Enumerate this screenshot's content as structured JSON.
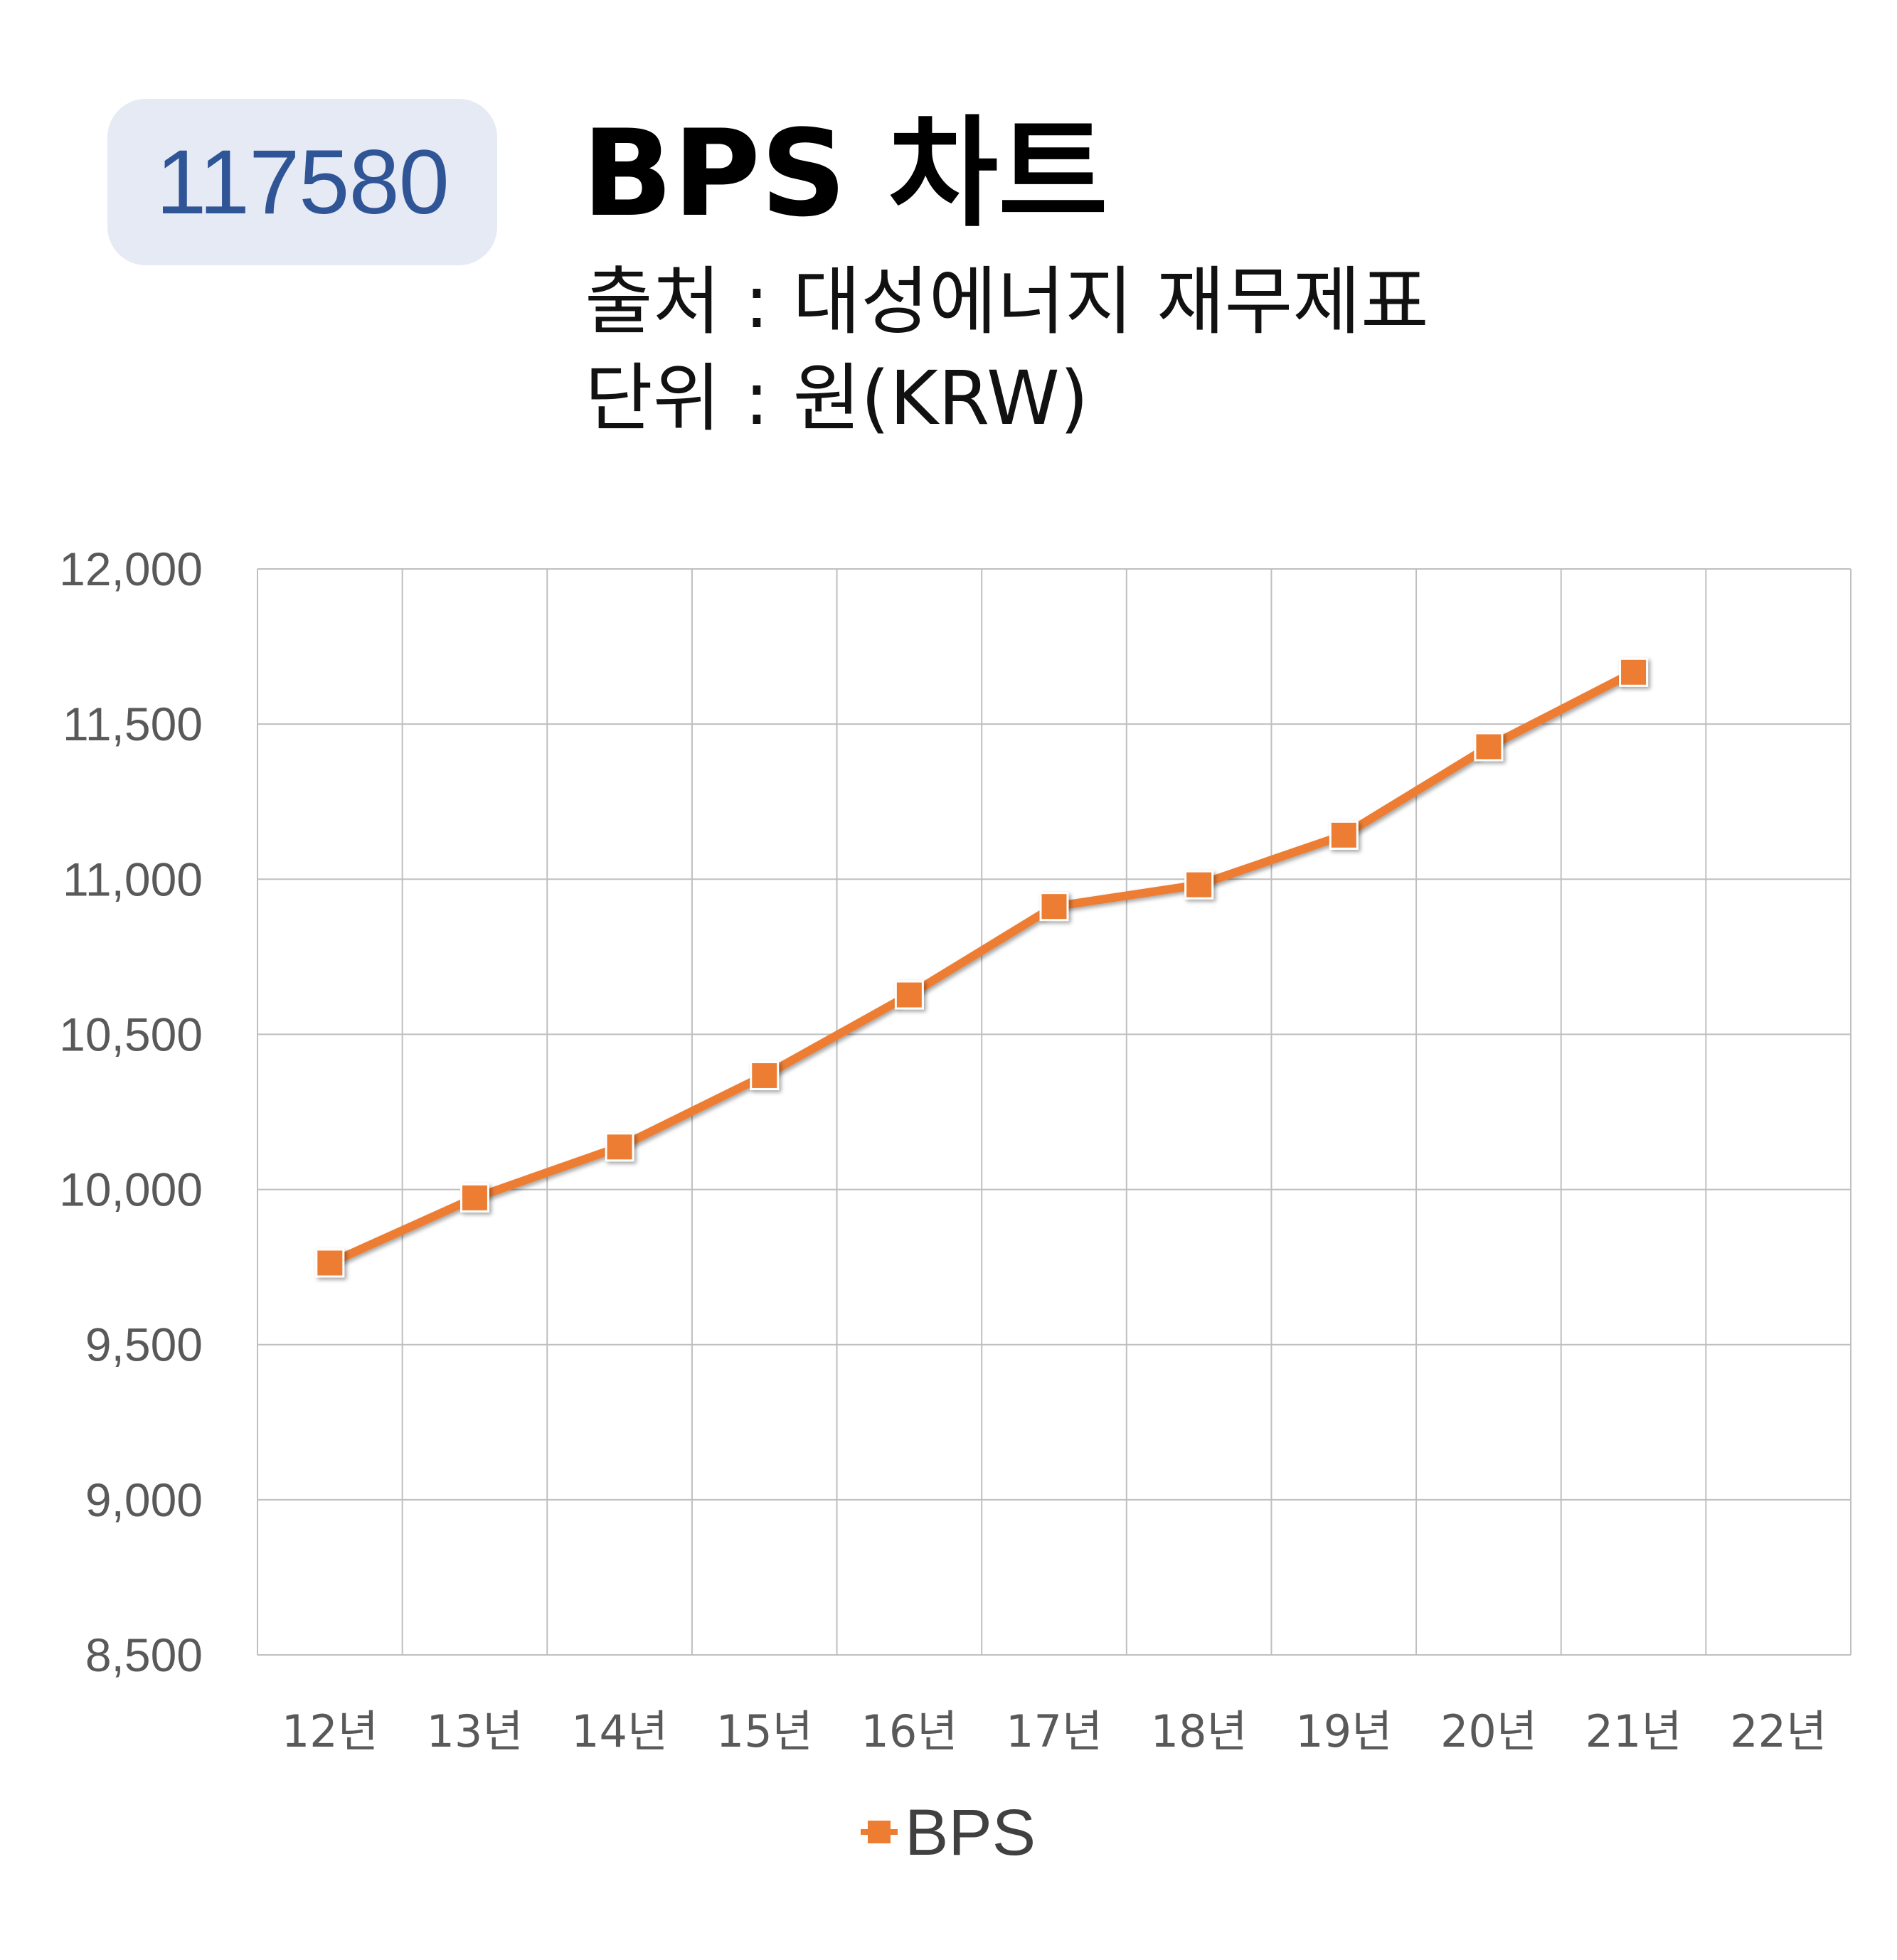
{
  "code_badge": "117580",
  "chart_data": {
    "type": "line",
    "title": "BPS 차트",
    "subtitle_source": "출처 : 대성에너지 재무제표",
    "subtitle_unit": "단위 : 원(KRW)",
    "categories": [
      "12년",
      "13년",
      "14년",
      "15년",
      "16년",
      "17년",
      "18년",
      "19년",
      "20년",
      "21년",
      "22년"
    ],
    "series": [
      {
        "name": "BPS",
        "color": "#ed7d31",
        "values": [
          9763,
          9973,
          10137,
          10367,
          10627,
          10912,
          10982,
          11142,
          11427,
          11667,
          null
        ]
      }
    ],
    "ylim": [
      8500,
      12000
    ],
    "yticks": [
      "8,500",
      "9,000",
      "9,500",
      "10,000",
      "10,500",
      "11,000",
      "11,500",
      "12,000"
    ],
    "ytick_values": [
      8500,
      9000,
      9500,
      10000,
      10500,
      11000,
      11500,
      12000
    ],
    "grid": true,
    "legend_position": "bottom"
  }
}
